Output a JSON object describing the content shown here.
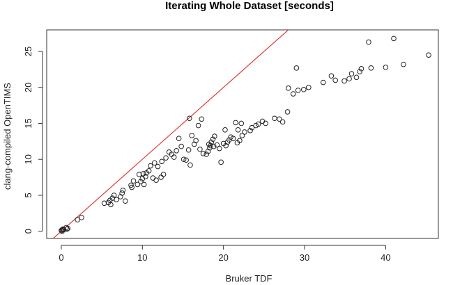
{
  "chart_data": {
    "type": "scatter",
    "title": "Iterating Whole Dataset [seconds]",
    "xlabel": "Bruker TDF",
    "ylabel": "clang-compiled OpenTIMS",
    "xlim": [
      -1.8,
      46.5
    ],
    "ylim": [
      -1.0,
      28.0
    ],
    "xticks": [
      0,
      10,
      20,
      30,
      40
    ],
    "yticks": [
      0,
      5,
      10,
      15,
      20,
      25
    ],
    "grid": false,
    "legend": "none",
    "reference_line": {
      "kind": "y=x",
      "color": "#e03a3a"
    },
    "points": [
      [
        0.0,
        0.1
      ],
      [
        0.1,
        0.2
      ],
      [
        0.2,
        0.3
      ],
      [
        0.1,
        0.0
      ],
      [
        0.3,
        0.2
      ],
      [
        0.6,
        0.5
      ],
      [
        0.8,
        0.4
      ],
      [
        0.7,
        0.3
      ],
      [
        2.0,
        1.6
      ],
      [
        2.5,
        1.9
      ],
      [
        5.3,
        3.9
      ],
      [
        5.8,
        4.0
      ],
      [
        6.0,
        4.3
      ],
      [
        6.1,
        3.7
      ],
      [
        6.3,
        4.6
      ],
      [
        6.5,
        5.0
      ],
      [
        6.8,
        4.4
      ],
      [
        7.3,
        4.8
      ],
      [
        7.5,
        5.3
      ],
      [
        7.6,
        5.7
      ],
      [
        7.9,
        4.2
      ],
      [
        8.6,
        6.4
      ],
      [
        8.9,
        7.0
      ],
      [
        8.7,
        6.1
      ],
      [
        9.4,
        6.5
      ],
      [
        9.8,
        6.9
      ],
      [
        9.6,
        7.9
      ],
      [
        10.0,
        7.3
      ],
      [
        10.1,
        8.0
      ],
      [
        10.2,
        6.5
      ],
      [
        10.4,
        7.6
      ],
      [
        10.5,
        8.1
      ],
      [
        10.8,
        8.4
      ],
      [
        11.0,
        9.1
      ],
      [
        11.3,
        7.4
      ],
      [
        11.7,
        7.1
      ],
      [
        11.5,
        9.5
      ],
      [
        11.9,
        9.0
      ],
      [
        12.4,
        9.7
      ],
      [
        12.3,
        7.5
      ],
      [
        12.6,
        7.9
      ],
      [
        12.9,
        10.2
      ],
      [
        13.3,
        11.0
      ],
      [
        13.6,
        10.7
      ],
      [
        13.9,
        10.3
      ],
      [
        14.2,
        11.2
      ],
      [
        14.5,
        12.9
      ],
      [
        14.8,
        11.8
      ],
      [
        15.1,
        10.0
      ],
      [
        15.4,
        9.9
      ],
      [
        15.7,
        11.3
      ],
      [
        15.9,
        9.2
      ],
      [
        16.1,
        13.3
      ],
      [
        16.4,
        12.1
      ],
      [
        16.6,
        12.6
      ],
      [
        16.9,
        14.7
      ],
      [
        17.1,
        11.4
      ],
      [
        17.5,
        10.8
      ],
      [
        15.8,
        15.7
      ],
      [
        17.3,
        15.6
      ],
      [
        17.9,
        10.7
      ],
      [
        18.1,
        11.1
      ],
      [
        18.3,
        11.6
      ],
      [
        18.2,
        12.1
      ],
      [
        18.5,
        12.4
      ],
      [
        18.4,
        11.9
      ],
      [
        18.7,
        12.8
      ],
      [
        18.9,
        13.2
      ],
      [
        18.8,
        11.8
      ],
      [
        19.2,
        12.0
      ],
      [
        19.5,
        11.5
      ],
      [
        19.7,
        9.6
      ],
      [
        20.0,
        12.2
      ],
      [
        20.3,
        11.9
      ],
      [
        20.2,
        14.1
      ],
      [
        20.5,
        12.4
      ],
      [
        20.7,
        12.7
      ],
      [
        20.9,
        13.1
      ],
      [
        21.2,
        12.9
      ],
      [
        21.5,
        15.1
      ],
      [
        21.8,
        14.1
      ],
      [
        21.7,
        12.3
      ],
      [
        22.0,
        12.6
      ],
      [
        22.3,
        13.3
      ],
      [
        22.2,
        15.0
      ],
      [
        22.6,
        13.8
      ],
      [
        23.3,
        14.0
      ],
      [
        23.5,
        14.4
      ],
      [
        24.0,
        14.7
      ],
      [
        24.3,
        14.9
      ],
      [
        24.8,
        15.3
      ],
      [
        25.2,
        15.0
      ],
      [
        26.3,
        15.7
      ],
      [
        26.9,
        15.6
      ],
      [
        27.3,
        15.2
      ],
      [
        27.9,
        16.6
      ],
      [
        28.0,
        19.9
      ],
      [
        28.6,
        19.1
      ],
      [
        29.0,
        22.7
      ],
      [
        29.2,
        19.6
      ],
      [
        29.9,
        19.7
      ],
      [
        30.5,
        20.0
      ],
      [
        32.3,
        20.7
      ],
      [
        33.3,
        21.6
      ],
      [
        33.8,
        21.0
      ],
      [
        34.9,
        20.9
      ],
      [
        35.5,
        21.2
      ],
      [
        35.8,
        21.9
      ],
      [
        36.4,
        21.4
      ],
      [
        36.8,
        22.2
      ],
      [
        37.0,
        22.6
      ],
      [
        37.9,
        26.3
      ],
      [
        38.2,
        22.7
      ],
      [
        40.0,
        22.8
      ],
      [
        41.0,
        26.8
      ],
      [
        42.2,
        23.2
      ],
      [
        45.3,
        24.5
      ]
    ]
  }
}
